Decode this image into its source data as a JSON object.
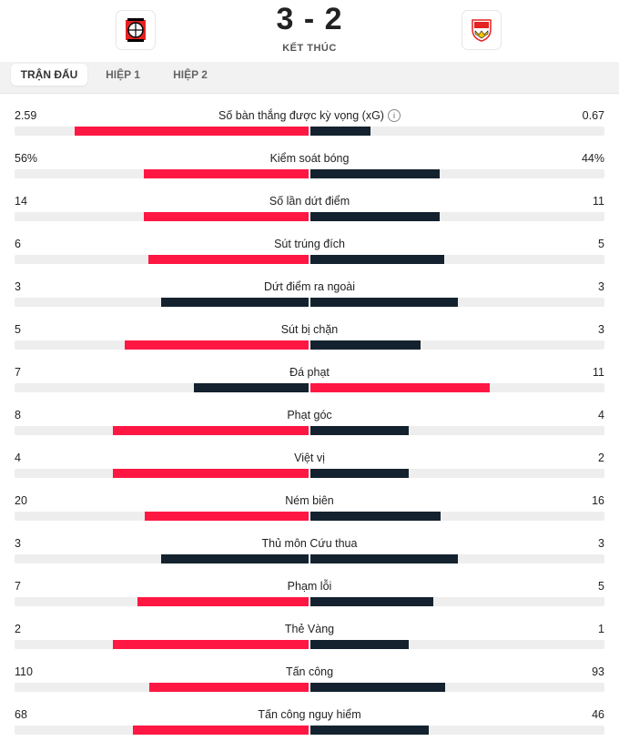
{
  "match": {
    "score": "3 - 2",
    "status": "KẾT THÚC",
    "home_logo": "bayer-leverkusen-crest",
    "away_logo": "vfb-stuttgart-crest"
  },
  "tabs": [
    {
      "label": "TRẬN ĐẤU",
      "active": true
    },
    {
      "label": "HIỆP 1",
      "active": false
    },
    {
      "label": "HIỆP 2",
      "active": false
    }
  ],
  "colors": {
    "highlight": "#ff1744",
    "dark": "#13222e",
    "track": "#eeeeee"
  },
  "stats": [
    {
      "label": "Số bàn thắng được kỳ vọng (xG)",
      "home": "2.59",
      "away": "0.67",
      "home_pct": 79.5,
      "away_pct": 20.5,
      "info": true,
      "leader": "home"
    },
    {
      "label": "Kiểm soát bóng",
      "home": "56%",
      "away": "44%",
      "home_pct": 56,
      "away_pct": 44,
      "leader": "home"
    },
    {
      "label": "Số lần dứt điểm",
      "home": "14",
      "away": "11",
      "home_pct": 56,
      "away_pct": 44,
      "leader": "home"
    },
    {
      "label": "Sút trúng đích",
      "home": "6",
      "away": "5",
      "home_pct": 54.5,
      "away_pct": 45.5,
      "leader": "home"
    },
    {
      "label": "Dứt điểm ra ngoài",
      "home": "3",
      "away": "3",
      "home_pct": 50,
      "away_pct": 50,
      "leader": "none"
    },
    {
      "label": "Sút bị chặn",
      "home": "5",
      "away": "3",
      "home_pct": 62.5,
      "away_pct": 37.5,
      "leader": "home"
    },
    {
      "label": "Đá phạt",
      "home": "7",
      "away": "11",
      "home_pct": 38.9,
      "away_pct": 61.1,
      "leader": "away"
    },
    {
      "label": "Phạt góc",
      "home": "8",
      "away": "4",
      "home_pct": 66.7,
      "away_pct": 33.3,
      "leader": "home"
    },
    {
      "label": "Việt vị",
      "home": "4",
      "away": "2",
      "home_pct": 66.7,
      "away_pct": 33.3,
      "leader": "home"
    },
    {
      "label": "Ném biên",
      "home": "20",
      "away": "16",
      "home_pct": 55.6,
      "away_pct": 44.4,
      "leader": "home"
    },
    {
      "label": "Thủ môn Cứu thua",
      "home": "3",
      "away": "3",
      "home_pct": 50,
      "away_pct": 50,
      "leader": "none"
    },
    {
      "label": "Phạm lỗi",
      "home": "7",
      "away": "5",
      "home_pct": 58.3,
      "away_pct": 41.7,
      "leader": "home"
    },
    {
      "label": "Thẻ Vàng",
      "home": "2",
      "away": "1",
      "home_pct": 66.7,
      "away_pct": 33.3,
      "leader": "home"
    },
    {
      "label": "Tấn công",
      "home": "110",
      "away": "93",
      "home_pct": 54.2,
      "away_pct": 45.8,
      "leader": "home"
    },
    {
      "label": "Tấn công nguy hiểm",
      "home": "68",
      "away": "46",
      "home_pct": 59.6,
      "away_pct": 40.4,
      "leader": "home"
    }
  ]
}
